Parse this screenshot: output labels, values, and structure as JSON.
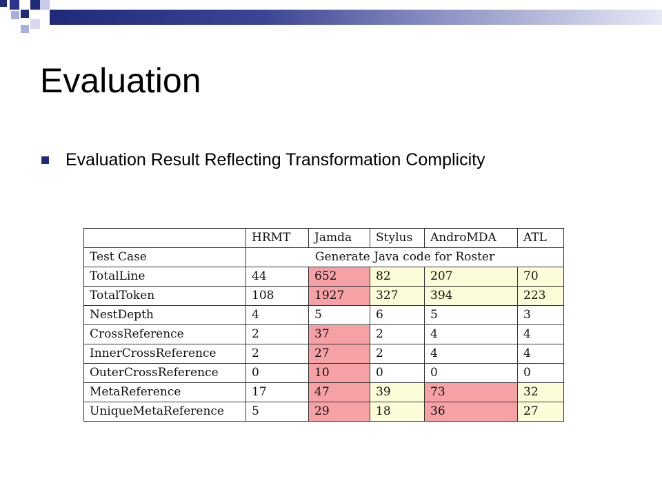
{
  "slide": {
    "title": "Evaluation",
    "bullet": "Evaluation Result Reflecting Transformation Complicity"
  },
  "colors": {
    "accent": "#1f2a78",
    "highlight_red": "#f6a1a6",
    "highlight_yellow": "#fdfcd8"
  },
  "table": {
    "columns": [
      "",
      "HRMT",
      "Jamda",
      "Stylus",
      "AndroMDA",
      "ATL"
    ],
    "test_case_label": "Test Case",
    "test_case_value": "Generate Java code for Roster",
    "rows": [
      {
        "label": "TotalLine",
        "values": [
          "44",
          "652",
          "82",
          "207",
          "70"
        ]
      },
      {
        "label": "TotalToken",
        "values": [
          "108",
          "1927",
          "327",
          "394",
          "223"
        ]
      },
      {
        "label": "NestDepth",
        "values": [
          "4",
          "5",
          "6",
          "5",
          "3"
        ]
      },
      {
        "label": "CrossReference",
        "values": [
          "2",
          "37",
          "2",
          "4",
          "4"
        ]
      },
      {
        "label": "InnerCrossReference",
        "values": [
          "2",
          "27",
          "2",
          "4",
          "4"
        ]
      },
      {
        "label": "OuterCrossReference",
        "values": [
          "0",
          "10",
          "0",
          "0",
          "0"
        ]
      },
      {
        "label": "MetaReference",
        "values": [
          "17",
          "47",
          "39",
          "73",
          "32"
        ]
      },
      {
        "label": "UniqueMetaReference",
        "values": [
          "5",
          "29",
          "18",
          "36",
          "27"
        ]
      }
    ]
  }
}
